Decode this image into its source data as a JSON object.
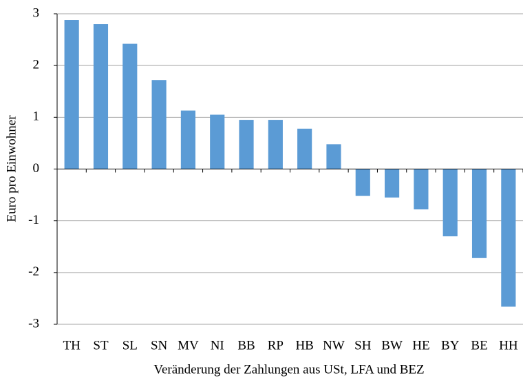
{
  "chart_data": {
    "type": "bar",
    "x_label": "Veränderung der Zahlungen aus USt, LFA und BEZ",
    "y_label": "Euro pro Einwohner",
    "categories": [
      "TH",
      "ST",
      "SL",
      "SN",
      "MV",
      "NI",
      "BB",
      "RP",
      "HB",
      "NW",
      "SH",
      "BW",
      "HE",
      "BY",
      "BE",
      "HH"
    ],
    "values": [
      2.88,
      2.8,
      2.42,
      1.72,
      1.13,
      1.05,
      0.95,
      0.95,
      0.78,
      0.48,
      -0.52,
      -0.55,
      -0.78,
      -1.3,
      -1.72,
      -2.66
    ],
    "color": "#5b9bd5",
    "ylim": [
      -3,
      3
    ],
    "yticks": [
      -3,
      -2,
      -1,
      0,
      1,
      2,
      3
    ],
    "grid": true
  }
}
